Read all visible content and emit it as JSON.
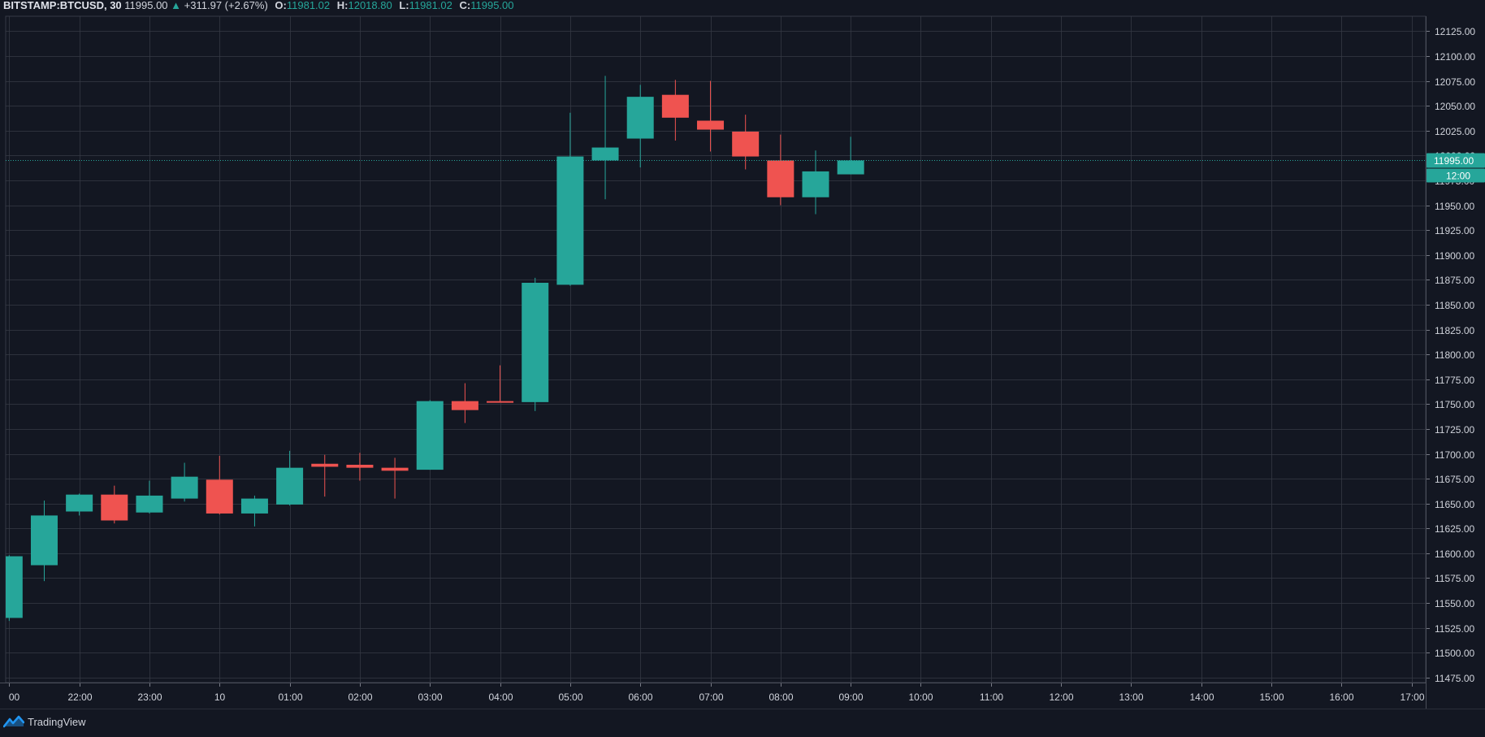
{
  "header": {
    "symbol": "BITSTAMP:BTCUSD, 30",
    "last": "11995.00",
    "change_arrow": "▲",
    "change": "+311.97 (+2.67%)",
    "o_label": "O:",
    "o_value": "11981.02",
    "h_label": "H:",
    "h_value": "12018.80",
    "l_label": "L:",
    "l_value": "11981.02",
    "c_label": "C:",
    "c_value": "11995.00"
  },
  "footer": {
    "brand": "TradingView",
    "logo_icon": "tradingview-logo-icon"
  },
  "price_marker": {
    "price": "11995.00",
    "time_label": "12:00",
    "value": 11995
  },
  "colors": {
    "up": "#26a69a",
    "down": "#ef5350",
    "background": "#131722",
    "grid": "#363a45",
    "text": "#d1d4dc"
  },
  "chart_data": {
    "type": "candlestick",
    "interval": "30",
    "ylim": [
      11470,
      12140
    ],
    "y_ticks": [
      11475,
      11500,
      11525,
      11550,
      11575,
      11600,
      11625,
      11650,
      11675,
      11700,
      11725,
      11750,
      11775,
      11800,
      11825,
      11850,
      11875,
      11900,
      11925,
      11950,
      11975,
      12000,
      12025,
      12050,
      12075,
      12100,
      12125
    ],
    "y_tick_labels": [
      "11475.00",
      "11500.00",
      "11525.00",
      "11550.00",
      "11575.00",
      "11600.00",
      "11625.00",
      "11650.00",
      "11675.00",
      "11700.00",
      "11725.00",
      "11750.00",
      "11775.00",
      "11800.00",
      "11825.00",
      "11850.00",
      "11875.00",
      "11900.00",
      "11925.00",
      "11950.00",
      "11975.00",
      "12000.00",
      "12025.00",
      "12050.00",
      "12075.00",
      "12100.00",
      "12125.00"
    ],
    "x_range": [
      -0.1,
      40.4
    ],
    "x_ticks": [
      {
        "i": 0,
        "label": "00"
      },
      {
        "i": 2,
        "label": "22:00"
      },
      {
        "i": 4,
        "label": "23:00"
      },
      {
        "i": 6,
        "label": "10"
      },
      {
        "i": 8,
        "label": "01:00"
      },
      {
        "i": 10,
        "label": "02:00"
      },
      {
        "i": 12,
        "label": "03:00"
      },
      {
        "i": 14,
        "label": "04:00"
      },
      {
        "i": 16,
        "label": "05:00"
      },
      {
        "i": 18,
        "label": "06:00"
      },
      {
        "i": 20,
        "label": "07:00"
      },
      {
        "i": 22,
        "label": "08:00"
      },
      {
        "i": 24,
        "label": "09:00"
      },
      {
        "i": 26,
        "label": "10:00"
      },
      {
        "i": 28,
        "label": "11:00"
      },
      {
        "i": 30,
        "label": "12:00"
      },
      {
        "i": 32,
        "label": "13:00"
      },
      {
        "i": 34,
        "label": "14:00"
      },
      {
        "i": 36,
        "label": "15:00"
      },
      {
        "i": 38,
        "label": "16:00"
      },
      {
        "i": 40,
        "label": "17:00"
      }
    ],
    "candles": [
      {
        "o": 11535,
        "h": 11598,
        "l": 11532,
        "c": 11597
      },
      {
        "o": 11588,
        "h": 11653,
        "l": 11572,
        "c": 11638
      },
      {
        "o": 11642,
        "h": 11660,
        "l": 11638,
        "c": 11659
      },
      {
        "o": 11659,
        "h": 11668,
        "l": 11630,
        "c": 11633
      },
      {
        "o": 11641,
        "h": 11673,
        "l": 11640,
        "c": 11658
      },
      {
        "o": 11655,
        "h": 11691,
        "l": 11652,
        "c": 11677
      },
      {
        "o": 11674,
        "h": 11698,
        "l": 11639,
        "c": 11640
      },
      {
        "o": 11640,
        "h": 11658,
        "l": 11627,
        "c": 11655
      },
      {
        "o": 11649,
        "h": 11703,
        "l": 11648,
        "c": 11686
      },
      {
        "o": 11690,
        "h": 11699,
        "l": 11657,
        "c": 11687
      },
      {
        "o": 11689,
        "h": 11701,
        "l": 11673,
        "c": 11686
      },
      {
        "o": 11686,
        "h": 11696,
        "l": 11655,
        "c": 11683
      },
      {
        "o": 11684,
        "h": 11754,
        "l": 11684,
        "c": 11753
      },
      {
        "o": 11753,
        "h": 11771,
        "l": 11731,
        "c": 11744
      },
      {
        "o": 11753,
        "h": 11789,
        "l": 11752,
        "c": 11752
      },
      {
        "o": 11752,
        "h": 11877,
        "l": 11743,
        "c": 11872
      },
      {
        "o": 11870,
        "h": 12043,
        "l": 11869,
        "c": 11999
      },
      {
        "o": 11995,
        "h": 12080,
        "l": 11956,
        "c": 12008
      },
      {
        "o": 12017,
        "h": 12071,
        "l": 11988,
        "c": 12059
      },
      {
        "o": 12061,
        "h": 12076,
        "l": 12015,
        "c": 12038
      },
      {
        "o": 12035,
        "h": 12075,
        "l": 12004,
        "c": 12026
      },
      {
        "o": 12024,
        "h": 12041,
        "l": 11986,
        "c": 11999
      },
      {
        "o": 11995,
        "h": 12021,
        "l": 11950,
        "c": 11958
      },
      {
        "o": 11958,
        "h": 12005,
        "l": 11941,
        "c": 11984
      },
      {
        "o": 11981.02,
        "h": 12018.8,
        "l": 11981.02,
        "c": 11995
      }
    ]
  }
}
